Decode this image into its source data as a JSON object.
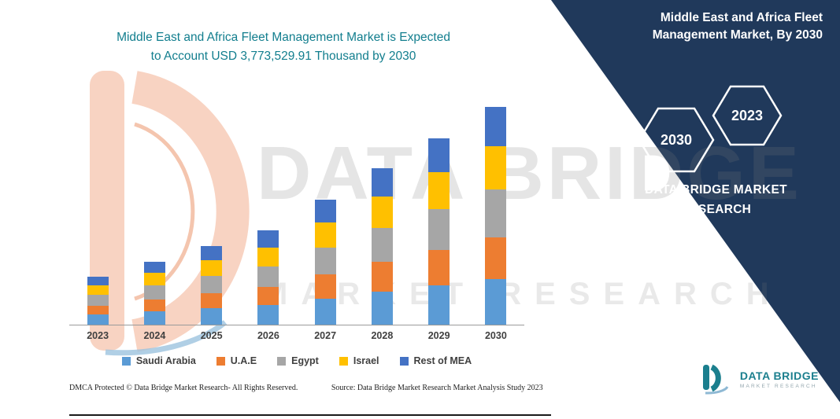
{
  "colors": {
    "panel_navy": "#20395b",
    "title_teal": "#127e8e",
    "logo_teal": "#1b7f8e",
    "axis_gray": "#9a9a9a"
  },
  "main_title": {
    "line1": "Middle East and Africa Fleet Management Market is Expected",
    "line2": "to Account USD 3,773,529.91 Thousand by 2030"
  },
  "side_panel": {
    "title": "Middle East and Africa Fleet Management Market, By 2030",
    "hexagon_left": "2030",
    "hexagon_right": "2023",
    "brand": "DATA BRIDGE MARKET RESEARCH"
  },
  "watermark": {
    "line1": "DATA BRIDGE",
    "line2": "MARKET RESEARCH"
  },
  "chart_data": {
    "type": "bar",
    "stacked": true,
    "title": "Middle East and Africa Fleet Management Market is Expected to Account USD 3,773,529.91 Thousand by 2030",
    "unit": "USD Thousand",
    "legend_position": "bottom",
    "y_axis_visible": false,
    "note": "No y-axis shown; series values estimated from bar heights, scaled so the 2030 stacked total equals the labeled USD 3,773,529.91 Thousand.",
    "categories": [
      "2023",
      "2024",
      "2025",
      "2026",
      "2027",
      "2028",
      "2029",
      "2030"
    ],
    "series": [
      {
        "name": "Saudi Arabia",
        "color": "#5B9BD5",
        "values": [
          174000,
          229000,
          286000,
          343000,
          455000,
          569000,
          678000,
          792441
        ]
      },
      {
        "name": "U.A.E",
        "color": "#ED7D31",
        "values": [
          158000,
          207000,
          258000,
          311000,
          411000,
          515000,
          614000,
          716971
        ]
      },
      {
        "name": "Egypt",
        "color": "#A6A6A6",
        "values": [
          183000,
          240000,
          299000,
          360000,
          476000,
          596000,
          711000,
          830177
        ]
      },
      {
        "name": "Israel",
        "color": "#FFC000",
        "values": [
          166000,
          218000,
          272000,
          327000,
          433000,
          542000,
          646000,
          754706
        ]
      },
      {
        "name": "Rest of MEA",
        "color": "#4472C4",
        "values": [
          149000,
          196000,
          245000,
          294000,
          390000,
          488000,
          581000,
          679234.91
        ]
      }
    ],
    "labeled_total_2030": "USD 3,773,529.91 Thousand"
  },
  "footer": {
    "dmca": "DMCA Protected © Data Bridge Market Research-  All Rights Reserved.",
    "source": "Source: Data Bridge Market Research  Market Analysis Study 2023"
  },
  "bottom_logo": {
    "brand": "DATA BRIDGE",
    "sub": "MARKET RESEARCH"
  }
}
